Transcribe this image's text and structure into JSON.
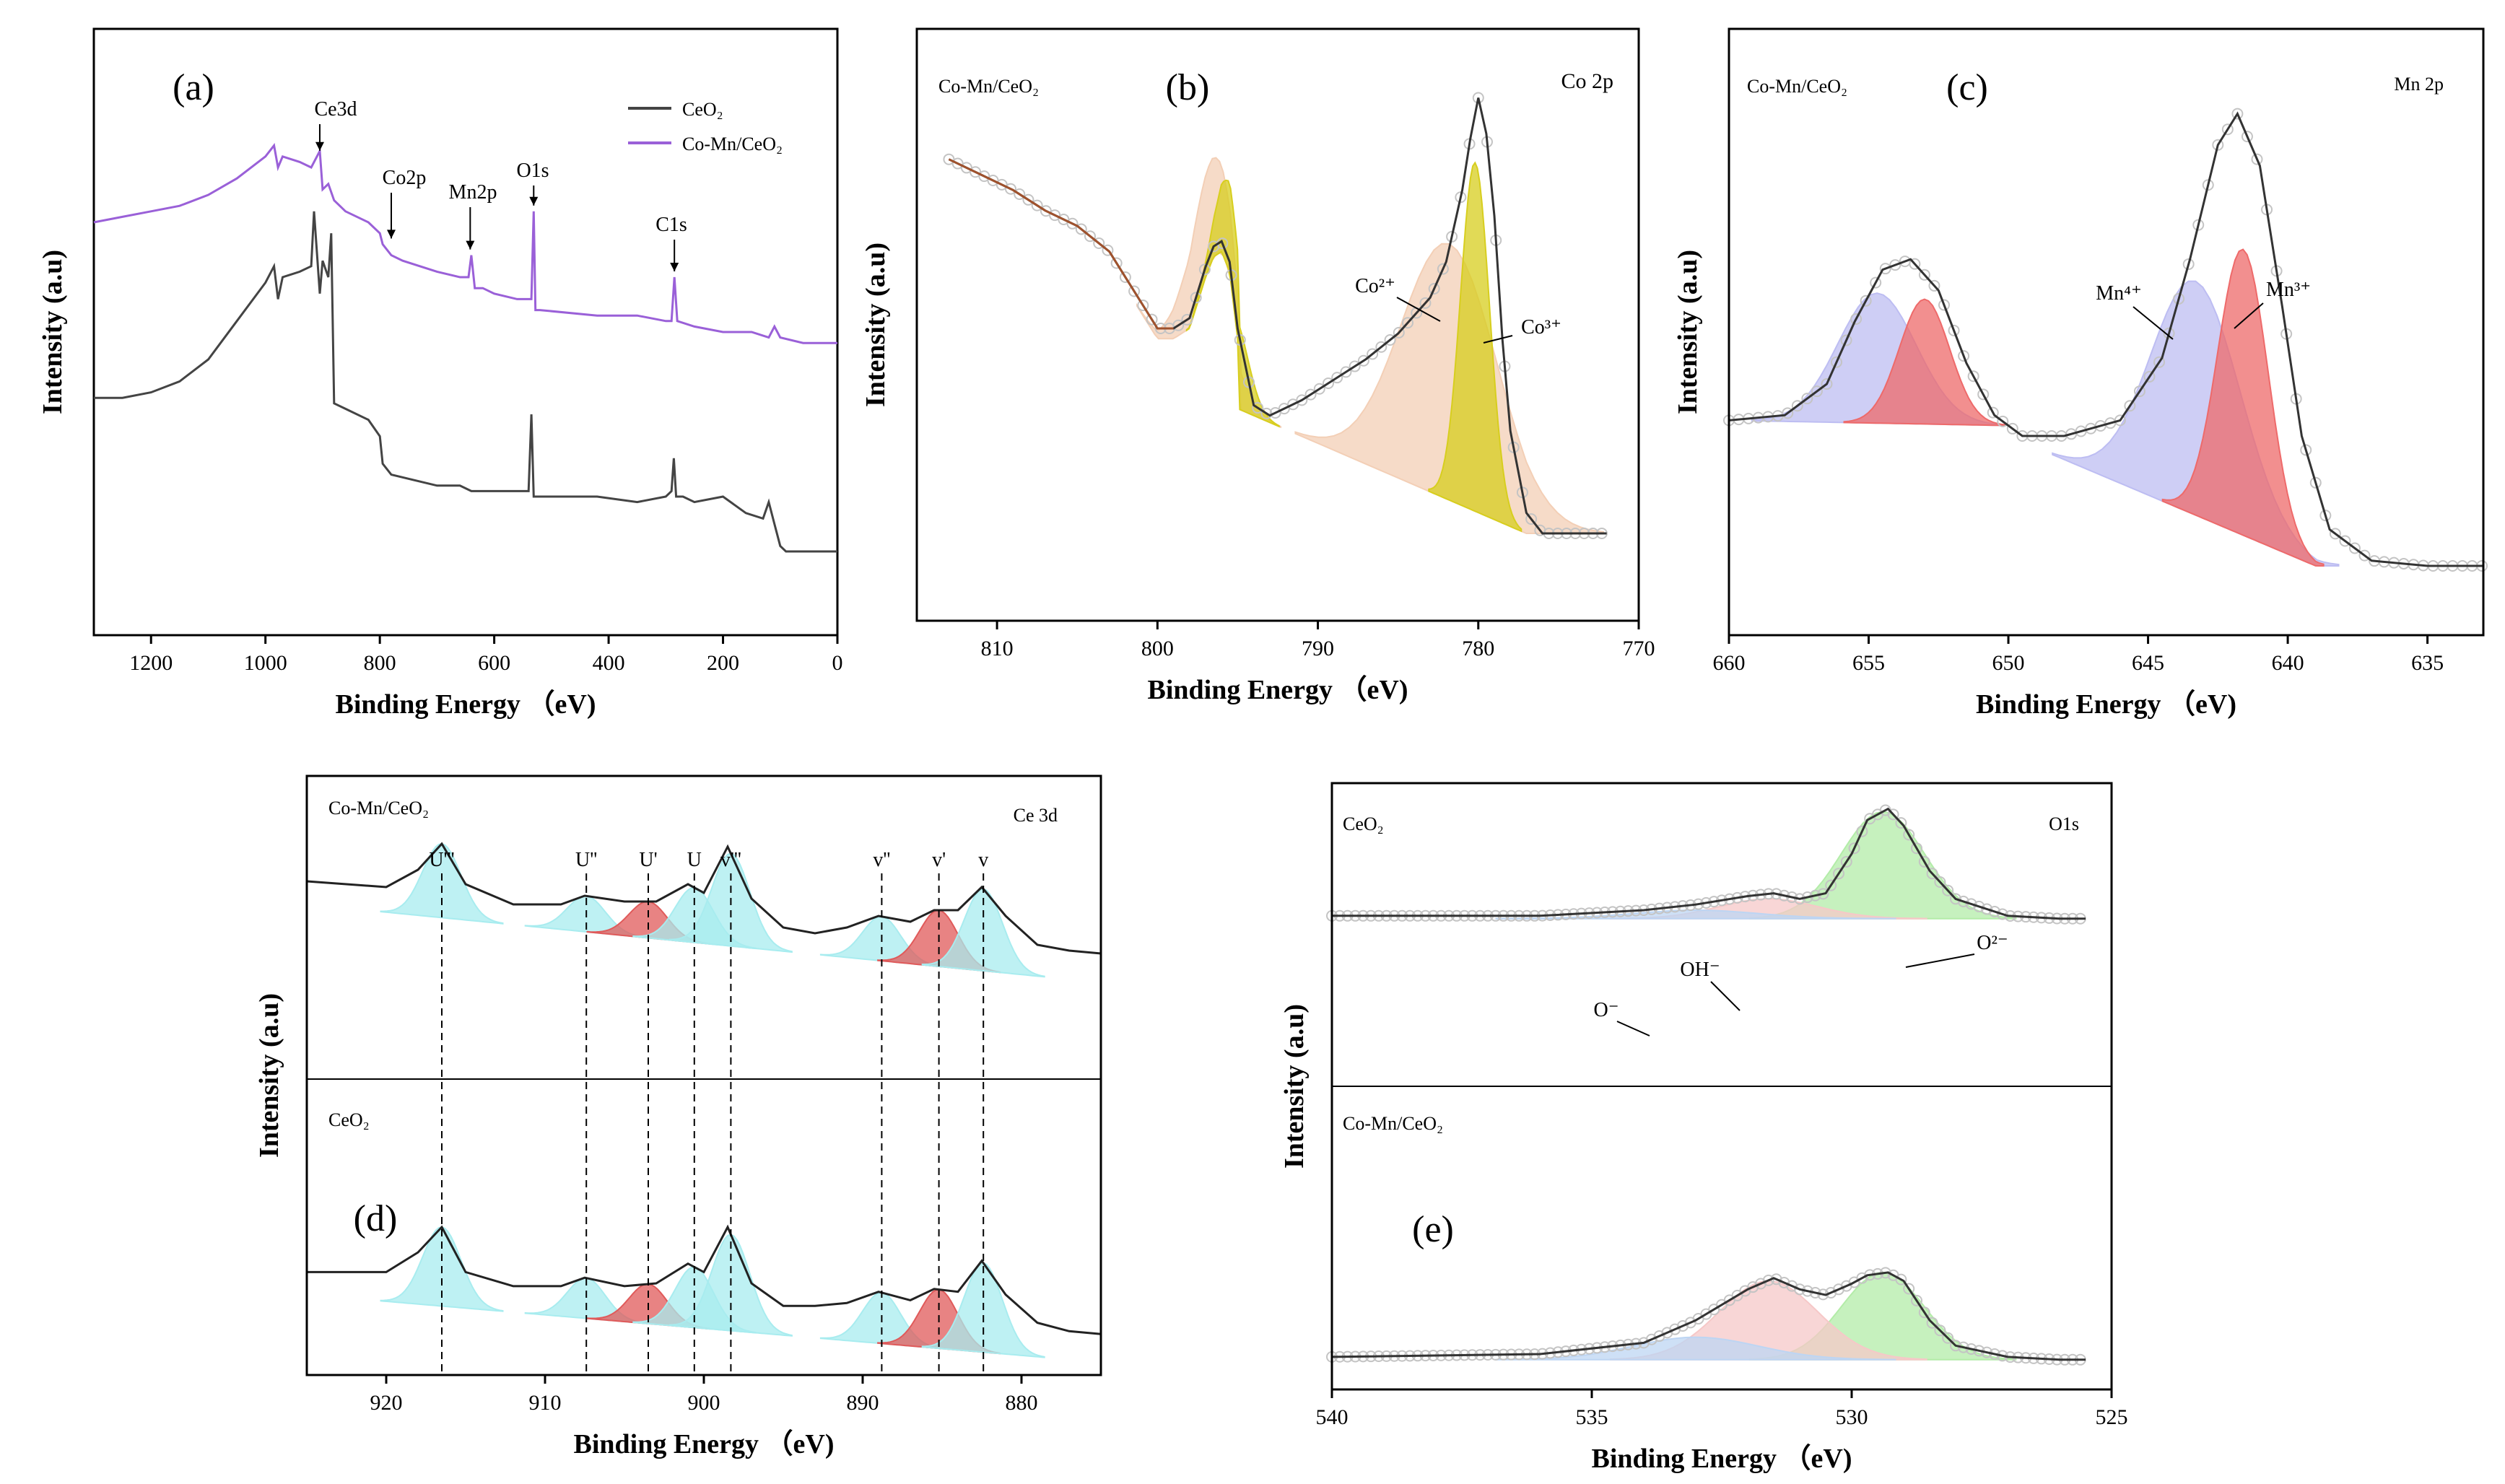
{
  "chart_data": [
    {
      "id": "a",
      "type": "line",
      "panel_label": "(a)",
      "xlabel": "Binding Energy （eV)",
      "ylabel": "Intensity (a.u)",
      "xlim": [
        1300,
        0
      ],
      "ylim": [
        0,
        100
      ],
      "xticks": [
        "1200",
        "1000",
        "800",
        "600",
        "400",
        "200",
        "0"
      ],
      "legend": {
        "placement": "top-right",
        "entries": [
          "CeO₂",
          "Co-Mn/CeO₂"
        ]
      },
      "annotations": [
        "Ce3d",
        "Co2p",
        "Mn2p",
        "O1s",
        "C1s"
      ],
      "series": [
        {
          "name": "CeO₂",
          "color": "#444444",
          "x": [
            1300,
            1250,
            1200,
            1150,
            1100,
            1050,
            1000,
            985,
            978,
            970,
            940,
            920,
            915,
            905,
            900,
            890,
            885,
            880,
            860,
            820,
            800,
            795,
            780,
            740,
            700,
            660,
            640,
            600,
            560,
            540,
            535,
            531,
            528,
            520,
            500,
            420,
            350,
            300,
            290,
            286,
            282,
            270,
            250,
            200,
            160,
            130,
            120,
            110,
            100,
            90,
            60,
            20,
            0
          ],
          "y": [
            38,
            38,
            39,
            41,
            45,
            52,
            59,
            62,
            56,
            60,
            61,
            62,
            72,
            57,
            63,
            60,
            68,
            37,
            36,
            34,
            31,
            26,
            24,
            23,
            22,
            22,
            21,
            21,
            21,
            21,
            35,
            20,
            20,
            20,
            20,
            20,
            19,
            20,
            21,
            27,
            20,
            20,
            19,
            20,
            17,
            16,
            19,
            15,
            11,
            10,
            10,
            10,
            10
          ]
        },
        {
          "name": "Co-Mn/CeO₂",
          "color": "#9A60D8",
          "x": [
            1300,
            1250,
            1200,
            1150,
            1100,
            1050,
            1000,
            985,
            978,
            970,
            940,
            920,
            905,
            900,
            890,
            880,
            860,
            820,
            800,
            795,
            780,
            760,
            700,
            660,
            645,
            640,
            634,
            620,
            600,
            560,
            535,
            531,
            528,
            520,
            420,
            350,
            300,
            290,
            285,
            280,
            250,
            200,
            150,
            120,
            110,
            100,
            60,
            0
          ],
          "y": [
            70,
            71,
            72,
            73,
            75,
            78,
            82,
            84,
            80,
            82,
            81,
            80,
            83,
            76,
            77,
            74,
            72,
            70,
            68,
            66,
            64,
            63,
            61,
            60,
            60,
            64,
            58,
            58,
            57,
            56,
            56,
            72,
            54,
            54,
            53,
            53,
            52,
            52,
            60,
            52,
            51,
            50,
            50,
            49,
            51,
            49,
            48,
            48
          ]
        }
      ]
    },
    {
      "id": "b",
      "type": "line",
      "panel_label": "(b)",
      "sample": "Co-Mn/CeO₂",
      "core_level": "Co 2p",
      "xlabel": "Binding Energy （eV)",
      "ylabel": "Intensity (a.u)",
      "xlim": [
        815,
        770
      ],
      "ylim": [
        0,
        100
      ],
      "xticks": [
        "810",
        "800",
        "790",
        "780",
        "770"
      ],
      "annotations": [
        "Co²⁺",
        "Co³⁺"
      ],
      "series": [
        {
          "name": "",
          "color": "#333333",
          "x": [
            813,
            811,
            809,
            807,
            805,
            803,
            801,
            800,
            799,
            798,
            797,
            796.5,
            796,
            795.5,
            795,
            794,
            793,
            791,
            789,
            787,
            785,
            783,
            782,
            781,
            780.5,
            780,
            779.5,
            779,
            778.5,
            778,
            777,
            776,
            774,
            772
          ],
          "y": [
            83,
            80,
            77,
            73,
            70,
            65,
            55,
            50,
            50,
            52,
            62,
            66,
            67,
            63,
            50,
            35,
            33,
            36,
            40,
            44,
            49,
            56,
            63,
            77,
            87,
            95,
            88,
            72,
            48,
            30,
            14,
            10,
            10,
            10
          ]
        }
      ],
      "components": [
        {
          "name": "Co²⁺",
          "color": "#F3CFB6",
          "peaks_ev": [
            781.5,
            796.5
          ]
        },
        {
          "name": "Co³⁺",
          "color": "#D7CE1E",
          "peaks_ev": [
            780.0,
            795.5
          ]
        }
      ]
    },
    {
      "id": "c",
      "type": "line",
      "panel_label": "(c)",
      "sample": "Co-Mn/CeO₂",
      "core_level": "Mn 2p",
      "xlabel": "Binding Energy （eV)",
      "ylabel": "Intensity (a.u)",
      "xlim": [
        660,
        633
      ],
      "ylim": [
        0,
        100
      ],
      "xticks": [
        "660",
        "655",
        "650",
        "645",
        "640",
        "635"
      ],
      "annotations": [
        "Mn⁴⁺",
        "Mn³⁺"
      ],
      "series": [
        {
          "name": "",
          "color": "#333333",
          "x": [
            660,
            658,
            656.5,
            655.5,
            654.5,
            653.5,
            652.5,
            651.5,
            650.5,
            649.5,
            648,
            646,
            644.5,
            643.5,
            642.5,
            641.8,
            641,
            640.2,
            639.5,
            638.5,
            637,
            635,
            633
          ],
          "y": [
            33,
            34,
            40,
            52,
            62,
            64,
            58,
            44,
            34,
            30,
            30,
            33,
            45,
            64,
            86,
            92,
            82,
            55,
            30,
            12,
            6,
            5,
            5
          ]
        }
      ],
      "components": [
        {
          "name": "Mn⁴⁺",
          "color": "#BDBDF2",
          "peaks_ev": [
            643.2,
            654.7
          ]
        },
        {
          "name": "Mn³⁺",
          "color": "#EE6A6A",
          "peaks_ev": [
            641.6,
            653.0
          ]
        }
      ]
    },
    {
      "id": "d",
      "type": "line",
      "panel_label": "(d)",
      "core_level": "Ce 3d",
      "xlabel": "Binding Energy （eV)",
      "ylabel": "Intensity (a.u)",
      "xlim": [
        925,
        875
      ],
      "ylim": [
        0,
        100
      ],
      "xticks": [
        "920",
        "910",
        "900",
        "890",
        "880"
      ],
      "peak_markers": [
        {
          "label": "U'''",
          "ev": 916.5
        },
        {
          "label": "U''",
          "ev": 907.4
        },
        {
          "label": "U'",
          "ev": 903.5
        },
        {
          "label": "U",
          "ev": 900.6
        },
        {
          "label": "v'''",
          "ev": 898.3
        },
        {
          "label": "v''",
          "ev": 888.8
        },
        {
          "label": "v'",
          "ev": 885.2
        },
        {
          "label": "v",
          "ev": 882.4
        }
      ],
      "series": [
        {
          "name": "Co-Mn/CeO₂",
          "color": "#333333",
          "x": [
            925,
            920,
            918,
            916.5,
            915,
            912,
            909,
            907.5,
            905,
            903,
            901,
            900,
            898.5,
            897,
            895,
            893,
            891,
            889,
            887,
            885.5,
            884,
            882.5,
            881,
            879,
            877,
            875
          ],
          "y": [
            66,
            64,
            70,
            79,
            65,
            58,
            58,
            61,
            59,
            59,
            65,
            62,
            78,
            60,
            50,
            48,
            50,
            54,
            52,
            56,
            56,
            64,
            54,
            44,
            42,
            41
          ]
        },
        {
          "name": "CeO₂",
          "color": "#333333",
          "x": [
            925,
            920,
            918,
            916.5,
            915,
            912,
            909,
            907.5,
            905,
            903,
            901,
            900,
            898.5,
            897,
            895,
            893,
            891,
            889,
            887,
            885.5,
            884,
            882.5,
            881,
            879,
            877,
            875
          ],
          "y": [
            34,
            34,
            41,
            50,
            34,
            29,
            29,
            32,
            29,
            30,
            37,
            34,
            50,
            30,
            22,
            22,
            23,
            27,
            24,
            28,
            27,
            38,
            26,
            16,
            13,
            12
          ]
        }
      ]
    },
    {
      "id": "e",
      "type": "line",
      "panel_label": "(e)",
      "core_level": "O1s",
      "xlabel": "Binding Energy （eV)",
      "ylabel": "Intensity (a.u)",
      "xlim": [
        540,
        525
      ],
      "ylim": [
        0,
        100
      ],
      "xticks": [
        "540",
        "535",
        "530",
        "525"
      ],
      "annotations": [
        "O⁻",
        "OH⁻",
        "O²⁻"
      ],
      "series": [
        {
          "name": "CeO₂",
          "color": "#333333",
          "x": [
            540,
            536,
            534,
            533,
            532,
            531.5,
            531,
            530.5,
            530,
            529.7,
            529.3,
            529,
            528.5,
            528,
            527,
            526,
            525.5
          ],
          "y": [
            58,
            58,
            60,
            62,
            65,
            66,
            64,
            66,
            80,
            92,
            96,
            90,
            74,
            64,
            58,
            57,
            57
          ]
        },
        {
          "name": "Co-Mn/CeO₂",
          "color": "#333333",
          "x": [
            540,
            536,
            534,
            533,
            532,
            531.5,
            531,
            530.5,
            530,
            529.7,
            529.3,
            529,
            528.5,
            528,
            527,
            526,
            525.5
          ],
          "y": [
            9,
            10,
            14,
            22,
            33,
            37,
            33,
            31,
            35,
            38,
            39,
            36,
            22,
            13,
            9,
            8,
            8
          ]
        }
      ],
      "components": [
        {
          "name": "O²⁻",
          "color": "#B3ECA8"
        },
        {
          "name": "OH⁻",
          "color": "#F6C8C8"
        },
        {
          "name": "O⁻",
          "color": "#BDD5F3"
        }
      ]
    }
  ]
}
